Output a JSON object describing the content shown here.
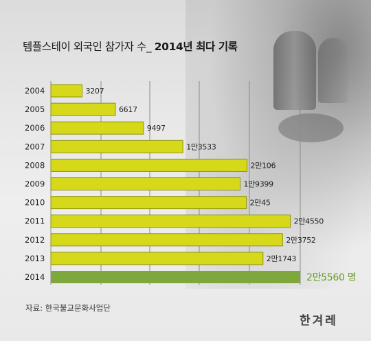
{
  "title": {
    "main": "템플스테이 외국인 참가자 수_",
    "highlight": "2014년 최다 기록"
  },
  "source": "자료: 한국불교문화사업단",
  "logo": "한겨레",
  "colors": {
    "bar": "#d6d81a",
    "bar_border": "#8f9110",
    "highlight_bar": "#7fa83c",
    "highlight_text": "#6b9b2a",
    "grid": "#8a8a8a"
  },
  "chart_data": {
    "type": "bar",
    "orientation": "horizontal",
    "title": "템플스테이 외국인 참가자 수_ 2014년 최다 기록",
    "categories": [
      "2004",
      "2005",
      "2006",
      "2007",
      "2008",
      "2009",
      "2010",
      "2011",
      "2012",
      "2013",
      "2014"
    ],
    "values": [
      3207,
      6617,
      9497,
      13533,
      20106,
      19399,
      20045,
      24550,
      23752,
      21743,
      25560
    ],
    "value_labels": [
      "3207",
      "6617",
      "9497",
      "1만3533",
      "2만106",
      "1만9399",
      "2만45",
      "2만4550",
      "2만3752",
      "2만1743",
      "2만5560 명"
    ],
    "highlight_index": 10,
    "xlim": [
      0,
      25560
    ],
    "grid": true
  }
}
